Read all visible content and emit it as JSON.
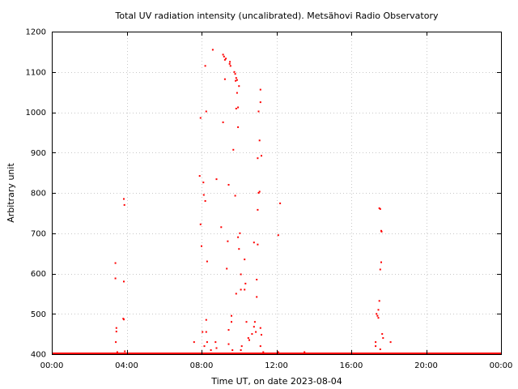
{
  "chart_data": {
    "type": "scatter",
    "title": "Total UV radiation intensity (uncalibrated). Metsähovi Radio Observatory",
    "xlabel": "Time UT, on date 2023-08-04",
    "ylabel": "Arbitrary unit",
    "xlim": [
      0,
      24
    ],
    "ylim": [
      400,
      1200
    ],
    "x_unit": "hours UT",
    "xticks": [
      0,
      4,
      8,
      12,
      16,
      20,
      24
    ],
    "xtick_labels": [
      "00:00",
      "04:00",
      "08:00",
      "12:00",
      "16:00",
      "20:00",
      "00:00"
    ],
    "yticks": [
      400,
      500,
      600,
      700,
      800,
      900,
      1000,
      1100,
      1200
    ],
    "ytick_labels": [
      "400",
      "500",
      "600",
      "700",
      "800",
      "900",
      "1000",
      "1100",
      "1200"
    ],
    "grid": true,
    "marker_color": "#ff0000",
    "baseline_value": 400,
    "series": [
      {
        "points": [
          [
            3.4,
            626
          ],
          [
            3.4,
            588
          ],
          [
            3.45,
            465
          ],
          [
            3.45,
            456
          ],
          [
            3.42,
            430
          ],
          [
            3.5,
            405
          ],
          [
            3.85,
            785
          ],
          [
            3.88,
            770
          ],
          [
            3.85,
            580
          ],
          [
            3.82,
            488
          ],
          [
            3.85,
            486
          ],
          [
            3.9,
            407
          ],
          [
            7.6,
            430
          ],
          [
            7.9,
            842
          ],
          [
            7.95,
            986
          ],
          [
            7.95,
            722
          ],
          [
            8.0,
            668
          ],
          [
            8.05,
            455
          ],
          [
            8.1,
            826
          ],
          [
            8.12,
            795
          ],
          [
            8.2,
            780
          ],
          [
            8.2,
            1115
          ],
          [
            8.25,
            1002
          ],
          [
            8.25,
            455
          ],
          [
            8.25,
            485
          ],
          [
            8.3,
            630
          ],
          [
            8.3,
            430
          ],
          [
            8.15,
            420
          ],
          [
            8.5,
            410
          ],
          [
            8.6,
            1155
          ],
          [
            8.75,
            430
          ],
          [
            8.8,
            834
          ],
          [
            8.8,
            415
          ],
          [
            9.05,
            715
          ],
          [
            9.15,
            975
          ],
          [
            9.15,
            1143
          ],
          [
            9.2,
            1138
          ],
          [
            9.25,
            1130
          ],
          [
            9.25,
            1082
          ],
          [
            9.3,
            1133
          ],
          [
            9.35,
            612
          ],
          [
            9.4,
            680
          ],
          [
            9.45,
            820
          ],
          [
            9.45,
            460
          ],
          [
            9.45,
            425
          ],
          [
            9.5,
            1120
          ],
          [
            9.52,
            1125
          ],
          [
            9.55,
            1115
          ],
          [
            9.6,
            495
          ],
          [
            9.6,
            480
          ],
          [
            9.65,
            410
          ],
          [
            9.7,
            907
          ],
          [
            9.75,
            1100
          ],
          [
            9.8,
            1095
          ],
          [
            9.82,
            1078
          ],
          [
            9.85,
            1085
          ],
          [
            9.85,
            1009
          ],
          [
            9.8,
            793
          ],
          [
            9.85,
            550
          ],
          [
            9.9,
            1048
          ],
          [
            9.9,
            1080
          ],
          [
            9.95,
            1012
          ],
          [
            9.95,
            690
          ],
          [
            10.0,
            661
          ],
          [
            9.95,
            963
          ],
          [
            10.0,
            1065
          ],
          [
            10.05,
            700
          ],
          [
            10.1,
            598
          ],
          [
            10.1,
            560
          ],
          [
            10.15,
            420
          ],
          [
            10.1,
            410
          ],
          [
            10.3,
            635
          ],
          [
            10.3,
            560
          ],
          [
            10.35,
            575
          ],
          [
            10.4,
            480
          ],
          [
            10.5,
            440
          ],
          [
            10.55,
            435
          ],
          [
            10.7,
            450
          ],
          [
            10.8,
            677
          ],
          [
            10.8,
            468
          ],
          [
            10.85,
            480
          ],
          [
            10.9,
            455
          ],
          [
            10.95,
            585
          ],
          [
            10.95,
            542
          ],
          [
            11.0,
            886
          ],
          [
            11.0,
            758
          ],
          [
            11.0,
            672
          ],
          [
            11.05,
            1002
          ],
          [
            11.05,
            800
          ],
          [
            11.1,
            803
          ],
          [
            11.1,
            930
          ],
          [
            11.15,
            1056
          ],
          [
            11.15,
            1025
          ],
          [
            11.2,
            892
          ],
          [
            11.15,
            465
          ],
          [
            11.2,
            448
          ],
          [
            11.15,
            420
          ],
          [
            11.3,
            405
          ],
          [
            12.2,
            774
          ],
          [
            12.1,
            695
          ],
          [
            12.1,
            405
          ],
          [
            12.3,
            402
          ],
          [
            13.5,
            405
          ],
          [
            17.3,
            430
          ],
          [
            17.3,
            420
          ],
          [
            17.35,
            500
          ],
          [
            17.4,
            495
          ],
          [
            17.45,
            510
          ],
          [
            17.5,
            532
          ],
          [
            17.45,
            490
          ],
          [
            17.5,
            762
          ],
          [
            17.55,
            760
          ],
          [
            17.6,
            706
          ],
          [
            17.62,
            704
          ],
          [
            17.6,
            628
          ],
          [
            17.55,
            610
          ],
          [
            17.65,
            450
          ],
          [
            17.7,
            440
          ],
          [
            17.55,
            412
          ],
          [
            18.1,
            430
          ]
        ]
      }
    ]
  }
}
